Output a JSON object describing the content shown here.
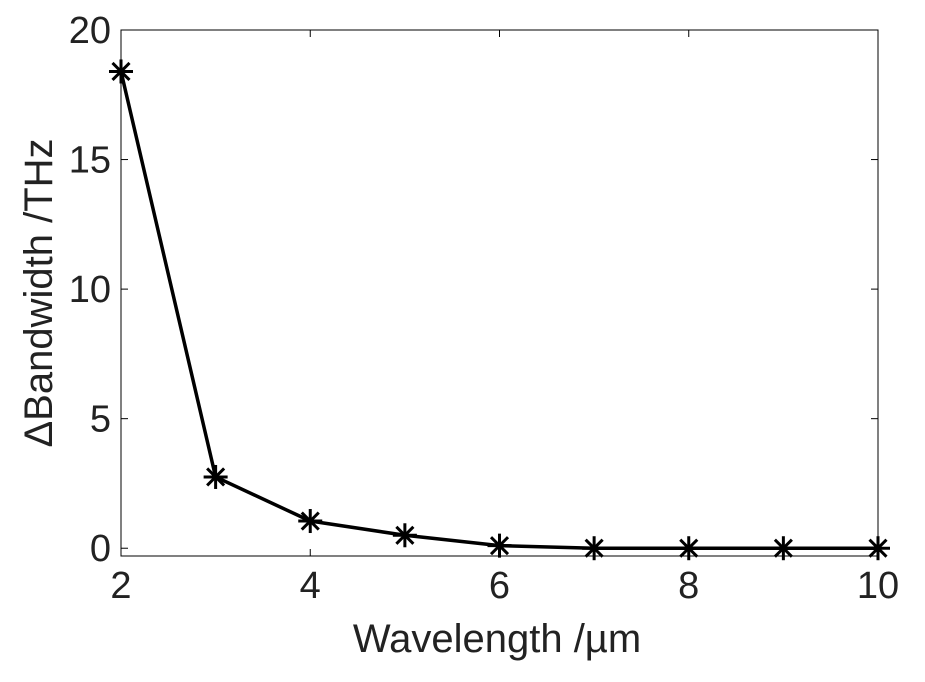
{
  "chart_data": {
    "type": "line",
    "title": "",
    "xlabel": "Wavelength /µm",
    "ylabel": "ΔBandwidth /THz",
    "xlim": [
      2,
      10
    ],
    "ylim": [
      -0.3,
      20
    ],
    "xticks": [
      2,
      4,
      6,
      8,
      10
    ],
    "yticks": [
      0,
      5,
      10,
      15,
      20
    ],
    "grid": false,
    "marker": "asterisk",
    "line_color": "#000000",
    "x": [
      2,
      3,
      4,
      5,
      6,
      7,
      8,
      9,
      10
    ],
    "y": [
      18.4,
      2.75,
      1.05,
      0.5,
      0.1,
      0,
      0,
      0,
      0
    ]
  }
}
